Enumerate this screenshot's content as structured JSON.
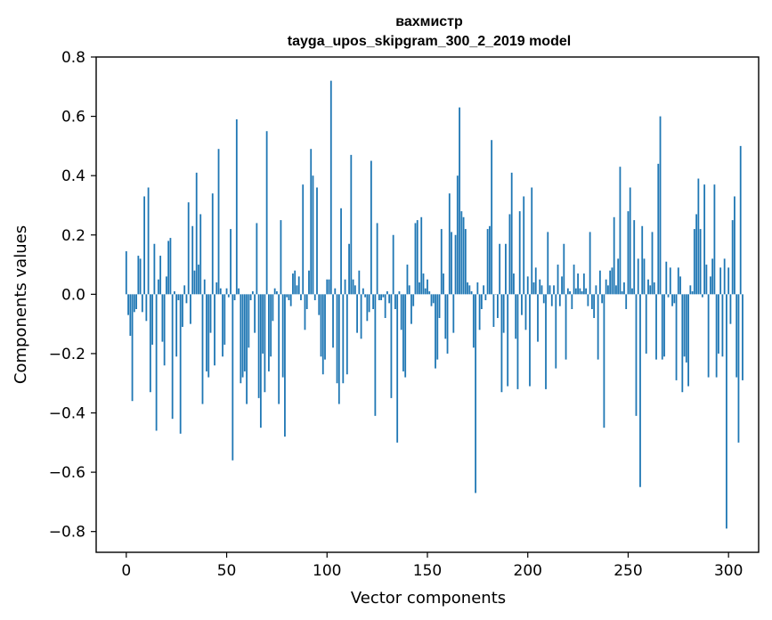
{
  "chart_data": {
    "type": "bar",
    "title": "вахмистр",
    "subtitle": "tayga_upos_skipgram_300_2_2019 model",
    "xlabel": "Vector components",
    "ylabel": "Components values",
    "xlim": [
      -15,
      315
    ],
    "ylim": [
      -0.87,
      0.8
    ],
    "xticks": [
      0,
      50,
      100,
      150,
      200,
      250,
      300
    ],
    "xtick_labels": [
      "0",
      "50",
      "100",
      "150",
      "200",
      "250",
      "300"
    ],
    "yticks": [
      -0.8,
      -0.6,
      -0.4,
      -0.2,
      0.0,
      0.2,
      0.4,
      0.6,
      0.8
    ],
    "ytick_labels": [
      "−0.8",
      "−0.6",
      "−0.4",
      "−0.2",
      "0.0",
      "0.2",
      "0.4",
      "0.6",
      "0.8"
    ],
    "grid": false,
    "bar_color": "#1f77b4",
    "x_start": 0,
    "values": [
      0.145,
      -0.07,
      -0.14,
      -0.36,
      -0.06,
      -0.05,
      0.13,
      0.12,
      -0.06,
      0.33,
      -0.09,
      0.36,
      -0.33,
      -0.17,
      0.17,
      -0.46,
      0.05,
      0.13,
      -0.16,
      -0.24,
      0.06,
      0.18,
      0.19,
      -0.42,
      0.01,
      -0.21,
      -0.02,
      -0.47,
      -0.11,
      0.03,
      -0.03,
      0.31,
      -0.1,
      0.23,
      0.08,
      0.41,
      0.1,
      0.27,
      -0.37,
      0.05,
      -0.26,
      -0.28,
      -0.13,
      0.34,
      -0.24,
      0.04,
      0.49,
      0.02,
      -0.21,
      -0.17,
      0.02,
      -0.01,
      0.22,
      -0.56,
      -0.02,
      0.59,
      0.02,
      -0.3,
      -0.28,
      -0.26,
      -0.37,
      -0.18,
      -0.02,
      0.01,
      -0.13,
      0.24,
      -0.35,
      -0.45,
      -0.2,
      -0.33,
      0.55,
      -0.26,
      -0.21,
      -0.09,
      0.02,
      0.01,
      -0.37,
      0.25,
      -0.28,
      -0.48,
      -0.01,
      -0.02,
      -0.04,
      0.07,
      0.08,
      0.03,
      0.06,
      -0.02,
      0.37,
      -0.12,
      -0.05,
      0.08,
      0.49,
      0.4,
      -0.02,
      0.36,
      -0.07,
      -0.21,
      -0.27,
      -0.22,
      0.05,
      0.05,
      0.72,
      -0.18,
      0.02,
      -0.3,
      -0.37,
      0.29,
      -0.3,
      0.05,
      -0.27,
      0.17,
      0.47,
      0.05,
      0.03,
      -0.13,
      0.08,
      -0.15,
      0.02,
      -0.01,
      -0.09,
      -0.06,
      0.45,
      -0.05,
      -0.41,
      0.24,
      -0.02,
      -0.02,
      -0.01,
      -0.08,
      0.01,
      -0.03,
      -0.35,
      0.2,
      -0.05,
      -0.5,
      0.01,
      -0.12,
      -0.26,
      -0.28,
      0.1,
      0.03,
      -0.1,
      -0.04,
      0.24,
      0.25,
      0.04,
      0.26,
      0.07,
      0.02,
      0.05,
      0.01,
      -0.04,
      -0.03,
      -0.25,
      -0.22,
      -0.08,
      0.22,
      0.07,
      -0.15,
      -0.2,
      0.34,
      0.21,
      -0.13,
      0.2,
      0.4,
      0.63,
      0.28,
      0.26,
      0.22,
      0.04,
      0.03,
      0.01,
      -0.18,
      -0.67,
      0.04,
      -0.12,
      -0.05,
      0.03,
      -0.02,
      0.22,
      0.23,
      0.52,
      -0.11,
      0.0,
      -0.08,
      0.17,
      -0.33,
      -0.13,
      0.17,
      -0.31,
      0.27,
      0.41,
      0.07,
      -0.15,
      -0.32,
      0.28,
      -0.07,
      0.33,
      -0.12,
      0.06,
      -0.31,
      0.36,
      0.04,
      0.09,
      -0.16,
      0.05,
      0.03,
      -0.03,
      -0.32,
      0.21,
      0.03,
      -0.04,
      0.03,
      -0.25,
      0.1,
      -0.04,
      0.06,
      0.17,
      -0.22,
      0.02,
      0.01,
      -0.05,
      0.1,
      0.02,
      0.07,
      0.02,
      0.01,
      0.07,
      0.02,
      -0.04,
      0.21,
      -0.05,
      -0.08,
      0.03,
      -0.22,
      0.08,
      -0.03,
      -0.45,
      0.05,
      0.03,
      0.08,
      0.09,
      0.26,
      0.03,
      0.12,
      0.43,
      0.01,
      0.04,
      -0.05,
      0.28,
      0.36,
      0.02,
      0.25,
      -0.41,
      0.12,
      -0.65,
      0.23,
      0.12,
      -0.2,
      0.05,
      0.03,
      0.21,
      0.04,
      -0.22,
      0.44,
      0.6,
      -0.22,
      -0.21,
      0.11,
      -0.01,
      0.09,
      -0.04,
      -0.03,
      -0.29,
      0.09,
      0.06,
      -0.33,
      -0.21,
      -0.23,
      -0.31,
      0.03,
      0.01,
      0.22,
      0.27,
      0.39,
      0.22,
      -0.01,
      0.37,
      0.1,
      -0.28,
      0.06,
      0.12,
      0.37,
      -0.28,
      -0.2,
      0.09,
      -0.21,
      0.12,
      -0.79,
      0.09,
      -0.1,
      0.25,
      0.33,
      -0.28,
      -0.5,
      0.5,
      -0.29
    ]
  }
}
